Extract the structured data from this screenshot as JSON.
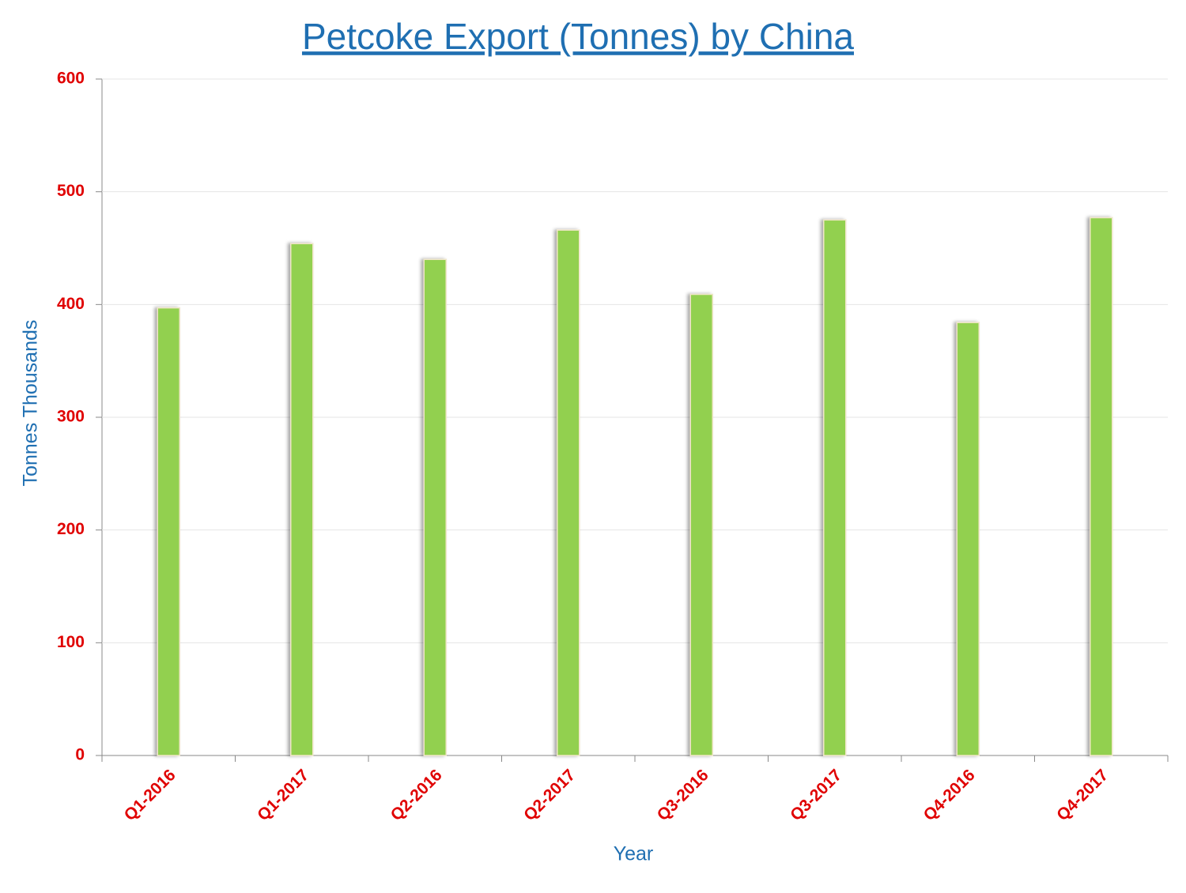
{
  "chart_data": {
    "type": "bar",
    "title": "Petcoke Export (Tonnes) by China",
    "x_label": "Year",
    "y_label": "Tonnes Thousands",
    "categories": [
      "Q1-2016",
      "Q1-2017",
      "Q2-2016",
      "Q2-2017",
      "Q3-2016",
      "Q3-2017",
      "Q4-2016",
      "Q4-2017"
    ],
    "values": [
      397,
      454,
      440,
      466,
      409,
      475,
      384,
      477
    ],
    "color": "#92d050",
    "ylim": [
      0,
      600
    ],
    "yticks": [
      0,
      100,
      200,
      300,
      400,
      500,
      600
    ],
    "grid": true
  }
}
